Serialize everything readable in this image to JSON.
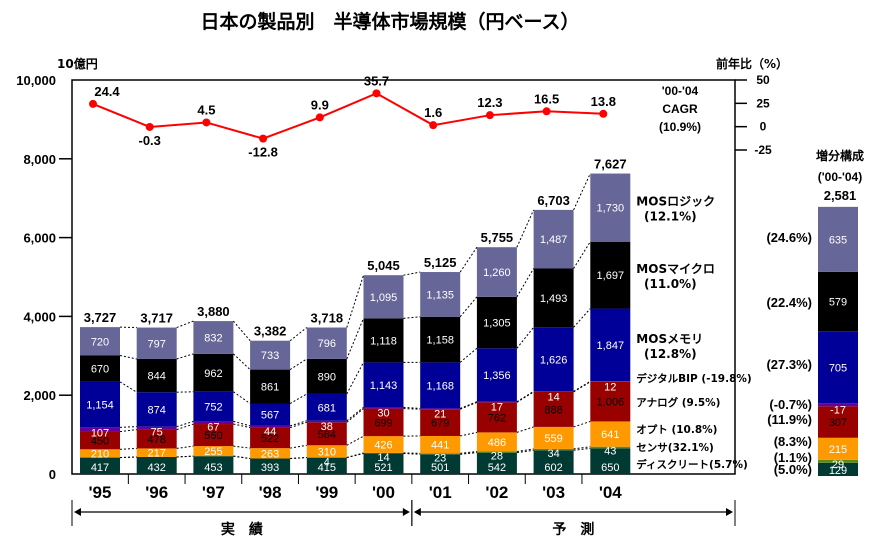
{
  "chart_data": {
    "type": "bar",
    "subtype": "stacked-bar-with-line",
    "title": "日本の製品別　半導体市場規模（円ベース）",
    "ylabel": "10億円",
    "y2label": "前年比（%）",
    "ylim": [
      0,
      10000
    ],
    "yticks": [
      "0",
      "2,000",
      "4,000",
      "6,000",
      "8,000",
      "10,000"
    ],
    "y2lim": [
      -25,
      50
    ],
    "y2ticks": [
      "50",
      "25",
      "0",
      "-25"
    ],
    "categories": [
      "'95",
      "'96",
      "'97",
      "'98",
      "'99",
      "'00",
      "'01",
      "'02",
      "'03",
      "'04"
    ],
    "totals": [
      "3,727",
      "3,717",
      "3,880",
      "3,382",
      "3,718",
      "5,045",
      "5,125",
      "5,755",
      "6,703",
      "7,627"
    ],
    "series": [
      {
        "name": "ディスクリート",
        "cagr": "(5.7%)",
        "color": "#003a33",
        "text_color": "#ffffff",
        "values": [
          417,
          432,
          453,
          393,
          415,
          521,
          501,
          542,
          602,
          650
        ]
      },
      {
        "name": "センサ",
        "cagr": "(32.1%)",
        "color": "#5c8a1e",
        "text_color": "#ffffff",
        "values": [
          null,
          null,
          null,
          null,
          4,
          14,
          23,
          28,
          34,
          43
        ]
      },
      {
        "name": "オプト",
        "cagr": "(10.8%)",
        "color": "#ff9900",
        "text_color": "#ffffff",
        "values": [
          210,
          217,
          255,
          263,
          310,
          426,
          441,
          486,
          559,
          641
        ]
      },
      {
        "name": "アナログ",
        "cagr": "(9.5%)",
        "color": "#990000",
        "text_color": "#000000",
        "values": [
          450,
          478,
          560,
          522,
          584,
          699,
          679,
          762,
          888,
          1006
        ]
      },
      {
        "name": "デジタルBIP",
        "cagr": "(-19.8%)",
        "color": "#660099",
        "text_color": "#ffffff",
        "values": [
          107,
          75,
          67,
          44,
          38,
          30,
          21,
          17,
          14,
          12
        ]
      },
      {
        "name": "MOSメモリ",
        "cagr": "(12.8%)",
        "color": "#000099",
        "text_color": "#ffffff",
        "values": [
          1154,
          874,
          752,
          567,
          681,
          1143,
          1168,
          1356,
          1626,
          1847
        ]
      },
      {
        "name": "MOSマイクロ",
        "cagr": "(11.0%)",
        "color": "#000000",
        "text_color": "#ffffff",
        "values": [
          670,
          844,
          962,
          861,
          890,
          1118,
          1158,
          1305,
          1493,
          1697
        ]
      },
      {
        "name": "MOSロジック",
        "cagr": "(12.1%)",
        "color": "#666699",
        "text_color": "#ffffff",
        "values": [
          720,
          797,
          832,
          733,
          796,
          1095,
          1135,
          1260,
          1487,
          1730
        ]
      }
    ],
    "growth_line": {
      "name": "前年比",
      "color": "#ff0000",
      "values": [
        24.4,
        -0.3,
        4.5,
        -12.8,
        9.9,
        35.7,
        1.6,
        12.3,
        16.5,
        13.8
      ],
      "labels": [
        "24.4",
        "-0.3",
        "4.5",
        "-12.8",
        "9.9",
        "35.7",
        "1.6",
        "12.3",
        "16.5",
        "13.8"
      ]
    },
    "cagr_note": [
      "'00-'04",
      "CAGR",
      "(10.9%)"
    ],
    "increment": {
      "title": "増分構成",
      "period": "('00-'04)",
      "total": "2,581",
      "values": [
        129,
        29,
        215,
        307,
        -17,
        705,
        579,
        635
      ],
      "labels": [
        "129",
        "29",
        "215",
        "307",
        "-17",
        "705",
        "579",
        "635"
      ],
      "shares": [
        "(5.0%)",
        "(1.1%)",
        "(8.3%)",
        "(11.9%)",
        "(-0.7%)",
        "(27.3%)",
        "(22.4%)",
        "(24.6%)"
      ]
    },
    "periods": [
      {
        "label": "実　績",
        "from": "'95",
        "to": "'00"
      },
      {
        "label": "予　測",
        "from": "'01",
        "to": "'04"
      }
    ],
    "legend_placement": "right of bars"
  }
}
